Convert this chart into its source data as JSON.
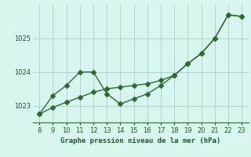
{
  "x": [
    8,
    9,
    10,
    11,
    12,
    13,
    14,
    15,
    16,
    17,
    18,
    19,
    20,
    21,
    22,
    23
  ],
  "y_jagged": [
    1022.75,
    1023.3,
    1023.6,
    1024.0,
    1024.0,
    1023.35,
    1023.05,
    1023.2,
    1023.35,
    1023.6,
    1023.9,
    1024.25,
    1024.55,
    1025.0,
    1025.7,
    1025.65
  ],
  "y_smooth": [
    1022.75,
    1022.95,
    1023.1,
    1023.25,
    1023.4,
    1023.5,
    1023.55,
    1023.6,
    1023.65,
    1023.75,
    1023.9,
    1024.25,
    1024.55,
    1025.0,
    1025.7,
    1025.65
  ],
  "line_color": "#2d6a2d",
  "bg_color": "#d8f5f0",
  "grid_color": "#a8cfc8",
  "xlabel": "Graphe pression niveau de la mer (hPa)",
  "xlabel_color": "#1a5c1a",
  "tick_color": "#1a5c1a",
  "ylim": [
    1022.5,
    1026.0
  ],
  "xlim": [
    7.5,
    23.5
  ],
  "yticks": [
    1023,
    1024,
    1025
  ],
  "xticks": [
    8,
    9,
    10,
    11,
    12,
    13,
    14,
    15,
    16,
    17,
    18,
    19,
    20,
    21,
    22,
    23
  ]
}
